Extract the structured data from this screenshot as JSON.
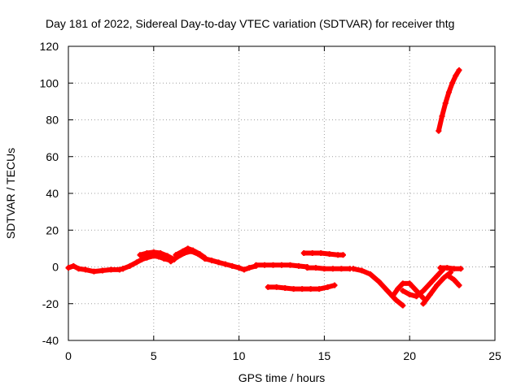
{
  "chart_data": {
    "type": "scatter",
    "title": "Day 181 of 2022, Sidereal Day-to-day VTEC variation (SDTVAR) for receiver thtg",
    "xlabel": "GPS time / hours",
    "ylabel": "SDTVAR / TECUs",
    "xlim": [
      0,
      25
    ],
    "ylim": [
      -40,
      120
    ],
    "xticks": [
      "0",
      "5",
      "10",
      "15",
      "20",
      "25"
    ],
    "yticks": [
      "-40",
      "-20",
      "0",
      "20",
      "40",
      "60",
      "80",
      "100",
      "120"
    ],
    "grid": true,
    "marker": "plus",
    "color": "#ff0000",
    "series": [
      {
        "x": [
          0,
          0.3,
          0.6,
          1.0,
          1.5,
          2.0,
          2.5,
          3.0,
          3.2
        ],
        "y": [
          -0.5,
          0.5,
          -1,
          -1.5,
          -2.5,
          -2,
          -1.5,
          -1.5,
          -1
        ]
      },
      {
        "x": [
          3.2,
          3.6,
          4.0,
          4.3,
          4.6,
          5.0,
          5.3,
          5.6,
          6.0
        ],
        "y": [
          -1,
          0.5,
          2.5,
          4,
          5,
          6,
          5.5,
          4.5,
          3.5
        ]
      },
      {
        "x": [
          4.2,
          4.6,
          5.0,
          5.4,
          5.8,
          6.2
        ],
        "y": [
          6.5,
          7.5,
          8,
          7.5,
          6,
          4
        ]
      },
      {
        "x": [
          6.0,
          6.4,
          6.8,
          7.2,
          7.6,
          8.0
        ],
        "y": [
          3,
          5.5,
          7.5,
          8.5,
          7,
          4.5
        ]
      },
      {
        "x": [
          6.3,
          6.7,
          7.0,
          7.3,
          7.7,
          8.0
        ],
        "y": [
          6.5,
          8.5,
          10,
          9,
          7,
          5
        ]
      },
      {
        "x": [
          8.0,
          8.4,
          8.8,
          9.2,
          9.6,
          10.0,
          10.3,
          10.6,
          11.0
        ],
        "y": [
          4.5,
          3.5,
          2.5,
          1.5,
          0.5,
          -0.5,
          -1.5,
          -0.5,
          0.5
        ]
      },
      {
        "x": [
          11.0,
          11.5,
          12.0,
          12.5,
          13.0,
          13.5,
          14.0
        ],
        "y": [
          1,
          1,
          1,
          1,
          1,
          0.5,
          0
        ]
      },
      {
        "x": [
          14.0,
          14.5,
          15.0,
          15.5,
          16.0,
          16.5
        ],
        "y": [
          -0.5,
          -0.5,
          -1,
          -1,
          -1,
          -1
        ]
      },
      {
        "x": [
          16.7,
          17.2,
          17.7,
          18.2,
          18.7,
          19.2,
          19.6
        ],
        "y": [
          -1,
          -2,
          -4,
          -8,
          -13,
          -18,
          -21
        ]
      },
      {
        "x": [
          19.0,
          19.3,
          19.6,
          20.0,
          20.4,
          20.8
        ],
        "y": [
          -16,
          -12,
          -9,
          -9,
          -13,
          -17
        ]
      },
      {
        "x": [
          19.6,
          20.0,
          20.4,
          20.8,
          21.2,
          21.6,
          22.0
        ],
        "y": [
          -13,
          -15,
          -16,
          -13,
          -9,
          -5,
          -1
        ]
      },
      {
        "x": [
          20.8,
          21.2,
          21.6,
          22.0,
          22.4
        ],
        "y": [
          -20,
          -15,
          -10,
          -6,
          -3
        ]
      },
      {
        "x": [
          21.8,
          22.2,
          22.6,
          23.0
        ],
        "y": [
          -0.5,
          -0.5,
          -1,
          -1
        ]
      },
      {
        "x": [
          22.3,
          22.6,
          22.9
        ],
        "y": [
          -5,
          -7,
          -10
        ]
      },
      {
        "x": [
          11.7,
          12.2,
          12.7,
          13.2,
          13.7,
          14.2,
          14.7,
          15.2,
          15.6
        ],
        "y": [
          -11,
          -11,
          -11.5,
          -12,
          -12,
          -12,
          -12,
          -11,
          -10
        ]
      },
      {
        "x": [
          13.8,
          14.3,
          14.8,
          15.3,
          15.8,
          16.1
        ],
        "y": [
          7.5,
          7.5,
          7.5,
          7,
          6.5,
          6.5
        ]
      },
      {
        "x": [
          21.7,
          21.9,
          22.1,
          22.3,
          22.5,
          22.7,
          22.9
        ],
        "y": [
          74,
          82,
          89,
          95,
          100,
          104,
          107
        ]
      }
    ]
  }
}
